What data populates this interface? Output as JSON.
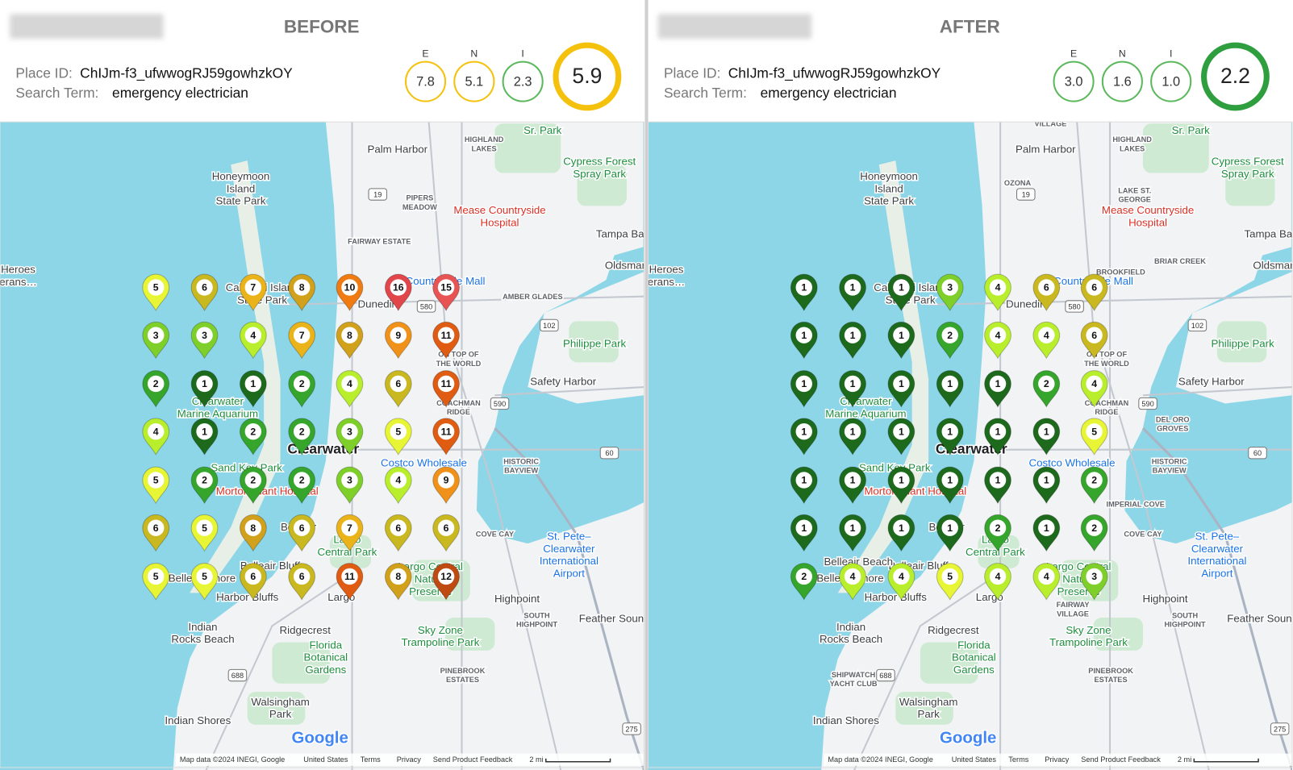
{
  "panels": [
    {
      "title": "BEFORE",
      "place_id_label": "Place ID:",
      "place_id": "ChIJm-f3_ufwwogRJ59gowhzkOY",
      "search_term_label": "Search Term:",
      "search_term": "emergency electrician",
      "scores": [
        {
          "label": "E",
          "value": "7.8",
          "color": "#f4c20d"
        },
        {
          "label": "N",
          "value": "5.1",
          "color": "#f4c20d"
        },
        {
          "label": "I",
          "value": "2.3",
          "color": "#5cb85c"
        }
      ],
      "overall": {
        "value": "5.9",
        "color": "#f4c20d"
      },
      "grid": [
        [
          5,
          6,
          7,
          8,
          10,
          16,
          15
        ],
        [
          3,
          3,
          4,
          7,
          8,
          9,
          11
        ],
        [
          2,
          1,
          1,
          2,
          4,
          6,
          11
        ],
        [
          4,
          1,
          2,
          2,
          3,
          5,
          11
        ],
        [
          5,
          2,
          2,
          2,
          3,
          4,
          9
        ],
        [
          6,
          5,
          8,
          6,
          7,
          6,
          6
        ],
        [
          5,
          5,
          6,
          6,
          11,
          8,
          12
        ]
      ],
      "extra_labels": [
        [
          "PIPERS",
          "MEADOW"
        ],
        [
          "FAIRWAY ESTATE"
        ],
        [
          "AMBER GLADES"
        ]
      ]
    },
    {
      "title": "AFTER",
      "place_id_label": "Place ID:",
      "place_id": "ChIJm-f3_ufwwogRJ59gowhzkOY",
      "search_term_label": "Search Term:",
      "search_term": "emergency electrician",
      "scores": [
        {
          "label": "E",
          "value": "3.0",
          "color": "#5cb85c"
        },
        {
          "label": "N",
          "value": "1.6",
          "color": "#5cb85c"
        },
        {
          "label": "I",
          "value": "1.0",
          "color": "#5cb85c"
        }
      ],
      "overall": {
        "value": "2.2",
        "color": "#2e9e3e"
      },
      "grid": [
        [
          1,
          1,
          1,
          3,
          4,
          6,
          6
        ],
        [
          1,
          1,
          1,
          2,
          4,
          4,
          6
        ],
        [
          1,
          1,
          1,
          1,
          1,
          2,
          4
        ],
        [
          1,
          1,
          1,
          1,
          1,
          1,
          5
        ],
        [
          1,
          1,
          1,
          1,
          1,
          1,
          2
        ],
        [
          1,
          1,
          1,
          1,
          2,
          1,
          2
        ],
        [
          2,
          4,
          4,
          5,
          4,
          4,
          3
        ]
      ],
      "extra_labels": [
        [
          "VILLAGE"
        ],
        [
          "OZONA"
        ],
        [
          "LAKE ST.",
          "GEORGE"
        ],
        [
          "BROOKFIELD"
        ],
        [
          "BRIAR CREEK"
        ],
        [
          "IMPERIAL COVE"
        ],
        [
          "DEL ORO",
          "GROVES"
        ],
        [
          "FAIRWAY",
          "VILLAGE"
        ],
        [
          "SHIPWATCH",
          "YACHT CLUB"
        ],
        [
          "Belleair Beach"
        ]
      ]
    }
  ],
  "pin_colors": {
    "1": "#1d6a1d",
    "2": "#35a52c",
    "3": "#7fcf2b",
    "4": "#b9ee2c",
    "5": "#e8f535",
    "6": "#c9b81f",
    "7": "#eab31a",
    "8": "#d1a11c",
    "9": "#f0921a",
    "10": "#f07b12",
    "11": "#e05c12",
    "12": "#bf4a12",
    "15": "#e85454",
    "16": "#e0464a"
  },
  "map": {
    "labels": [
      [
        "Palm Harbor"
      ],
      [
        "Honeymoon",
        "Island",
        "State Park"
      ],
      [
        "Cypress Forest",
        "Spray Park"
      ],
      [
        "Mease Countryside",
        "Hospital"
      ],
      [
        "Tampa Ba"
      ],
      [
        "Oldsmar"
      ],
      [
        "Heroes",
        "erans…"
      ],
      [
        "Caladesi Island",
        "State Park"
      ],
      [
        "Dunedin"
      ],
      [
        "Countryside Mall"
      ],
      [
        "Philippe Park"
      ],
      [
        "ON TOP OF",
        "THE WORLD"
      ],
      [
        "Safety Harbor"
      ],
      [
        "Clearwater",
        "Marine Aquarium"
      ],
      [
        "COACHMAN",
        "RIDGE"
      ],
      [
        "Clearwater"
      ],
      [
        "Costco Wholesale"
      ],
      [
        "HISTORIC",
        "BAYVIEW"
      ],
      [
        "Sand Key Park"
      ],
      [
        "Morton Plant Hospital"
      ],
      [
        "Belleair"
      ],
      [
        "COVE CAY"
      ],
      [
        "St. Pete–",
        "Clearwater",
        "International",
        "Airport"
      ],
      [
        "Largo",
        "Central Park"
      ],
      [
        "Belleair Bluffs"
      ],
      [
        "Belleair Shore"
      ],
      [
        "Harbor Bluffs"
      ],
      [
        "Largo"
      ],
      [
        "Largo Central",
        "Nature",
        "Preserve"
      ],
      [
        "Highpoint"
      ],
      [
        "SOUTH",
        "HIGHPOINT"
      ],
      [
        "Feather Sound"
      ],
      [
        "Indian",
        "Rocks Beach"
      ],
      [
        "Ridgecrest"
      ],
      [
        "Sky Zone",
        "Trampoline Park"
      ],
      [
        "Florida",
        "Botanical",
        "Gardens"
      ],
      [
        "PINEBROOK",
        "ESTATES"
      ],
      [
        "Walsingham",
        "Park"
      ],
      [
        "Indian Shores"
      ],
      [
        "HIGHLAND",
        "LAKES"
      ],
      [
        "Sr. Park"
      ]
    ],
    "shields": [
      "19",
      "580",
      "590",
      "60",
      "102",
      "688",
      "275"
    ],
    "logo": "Google",
    "attribution": [
      "Map data ©2024 INEGI, Google",
      "United States",
      "Terms",
      "Privacy",
      "Send Product Feedback",
      "2 mi"
    ]
  }
}
